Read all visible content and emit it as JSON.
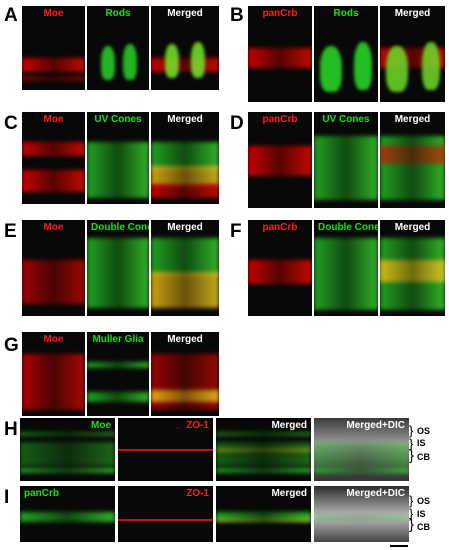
{
  "panels": {
    "A": {
      "letter": "A",
      "labels": [
        "Moe",
        "Rods",
        "Merged"
      ]
    },
    "B": {
      "letter": "B",
      "labels": [
        "panCrb",
        "Rods",
        "Merged"
      ]
    },
    "C": {
      "letter": "C",
      "labels": [
        "Moe",
        "UV Cones",
        "Merged"
      ]
    },
    "D": {
      "letter": "D",
      "labels": [
        "panCrb",
        "UV Cones",
        "Merged"
      ]
    },
    "E": {
      "letter": "E",
      "labels": [
        "Moe",
        "Double Cones",
        "Merged"
      ]
    },
    "F": {
      "letter": "F",
      "labels": [
        "panCrb",
        "Double Cones",
        "Merged"
      ]
    },
    "G": {
      "letter": "G",
      "labels": [
        "Moe",
        "Muller Glia",
        "Merged"
      ]
    },
    "H": {
      "letter": "H",
      "labels": [
        "Moe",
        "ZO-1",
        "Merged",
        "Merged+DIC"
      ]
    },
    "I": {
      "letter": "I",
      "labels": [
        "panCrb",
        "ZO-1",
        "Merged",
        "Merged+DIC"
      ]
    }
  },
  "layer_labels": {
    "os": "OS",
    "is": "IS",
    "cb": "CB"
  },
  "colors": {
    "red": "#ff1c1c",
    "green": "#18e018",
    "white": "#ffffff"
  }
}
